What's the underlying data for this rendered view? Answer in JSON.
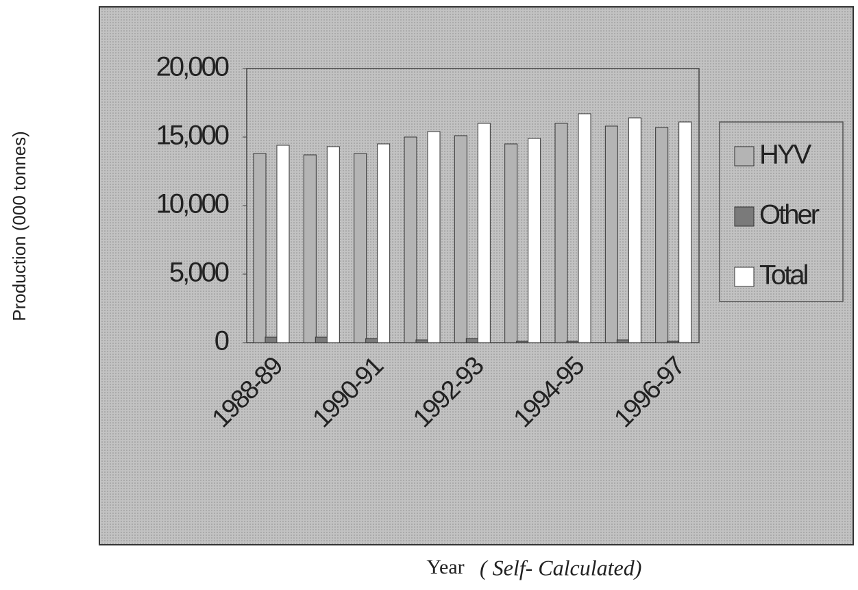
{
  "chart_data": {
    "type": "bar",
    "ylabel": "Production (000 tonnes)",
    "xlabel": "Year",
    "annotation": "( Self- Calculated)",
    "categories": [
      "1988-89",
      null,
      "1990-91",
      null,
      "1992-93",
      null,
      "1994-95",
      null,
      "1996-97"
    ],
    "series": [
      {
        "name": "HYV",
        "color": "#b4b4b4",
        "values": [
          13800,
          13700,
          13800,
          15000,
          15100,
          14500,
          16000,
          15800,
          15700
        ]
      },
      {
        "name": "Other",
        "color": "#7a7a7a",
        "values": [
          400,
          400,
          300,
          200,
          300,
          100,
          100,
          200,
          100
        ]
      },
      {
        "name": "Total",
        "color": "#ffffff",
        "values": [
          14400,
          14300,
          14500,
          15400,
          16000,
          14900,
          16700,
          16400,
          16100
        ]
      }
    ],
    "ylim": [
      0,
      20000
    ],
    "yticks": [
      0,
      {
        "value": 5000,
        "label": "5,000"
      },
      {
        "value": 10000,
        "label": "10,000"
      },
      {
        "value": 15000,
        "label": "15,000"
      },
      {
        "value": 20000,
        "label": "20,000"
      }
    ],
    "legend": "right"
  }
}
